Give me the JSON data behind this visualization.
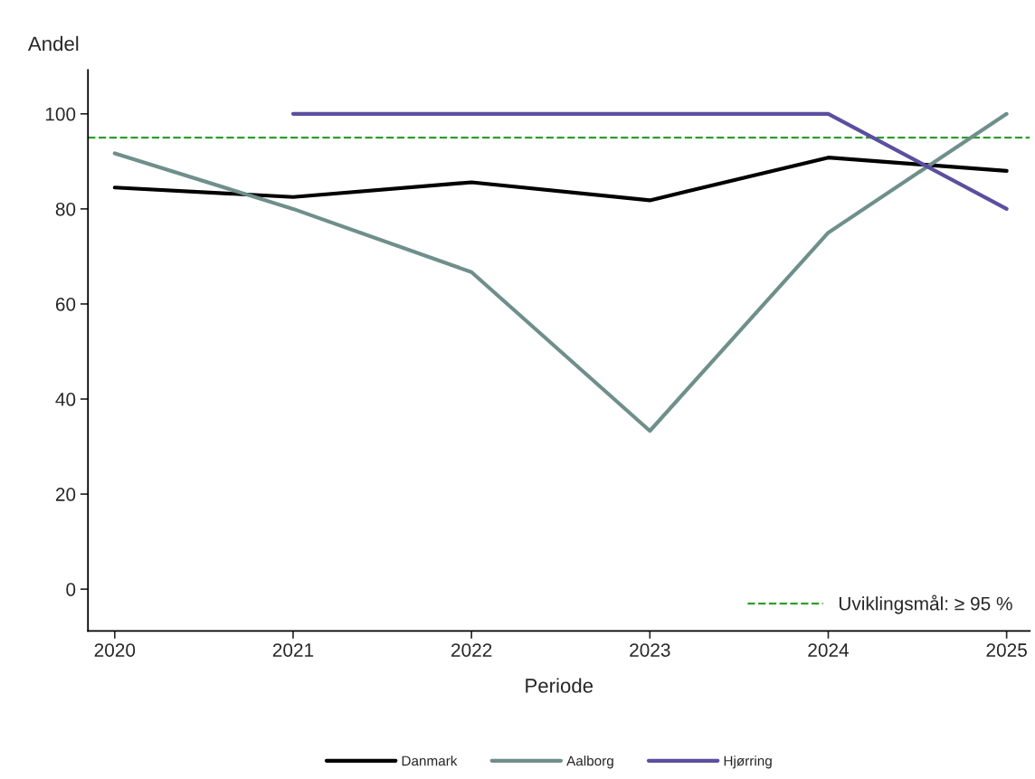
{
  "chart_data": {
    "type": "line",
    "xlabel": "Periode",
    "ylabel": "Andel",
    "x": [
      2020,
      2021,
      2022,
      2023,
      2024,
      2025
    ],
    "series": [
      {
        "name": "Danmark",
        "color": "#000000",
        "values": [
          84.5,
          82.5,
          85.6,
          81.8,
          90.8,
          88.0
        ]
      },
      {
        "name": "Aalborg",
        "color": "#6f8f8b",
        "values": [
          91.7,
          80.0,
          66.7,
          33.3,
          75.0,
          100.0
        ]
      },
      {
        "name": "Hjørring",
        "color": "#5b4fa0",
        "values": [
          null,
          100,
          100,
          100,
          100,
          80
        ]
      }
    ],
    "xlim": [
      2019.85,
      2025.13
    ],
    "xticks": [
      2020,
      2021,
      2022,
      2023,
      2024,
      2025
    ],
    "ylim": [
      -8.8,
      109.2
    ],
    "yticks": [
      0,
      20,
      40,
      60,
      80,
      100
    ],
    "ref_lines": [
      {
        "axis": "y",
        "value": 95,
        "label": "Uviklingsmål: ≥ 95 %",
        "color": "#2e9e2e",
        "line_style": "dashed"
      }
    ],
    "grid": false,
    "legend": "bottom",
    "marker": "none",
    "line_style": "solid"
  }
}
